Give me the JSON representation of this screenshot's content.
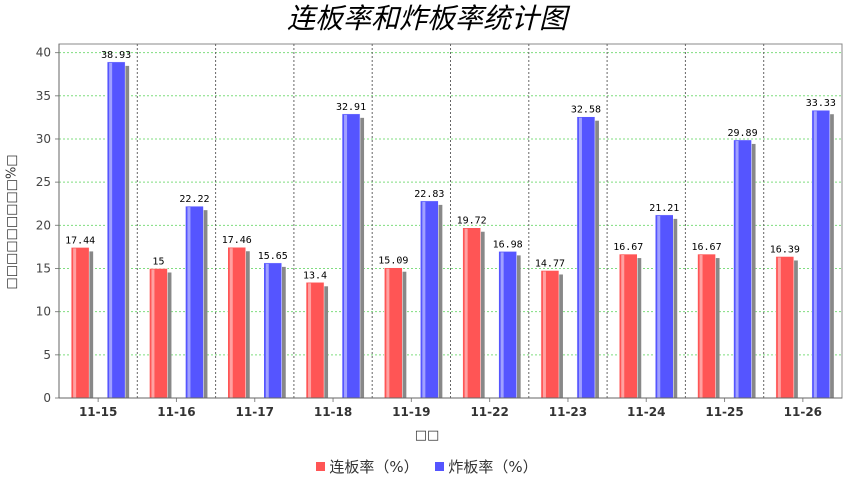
{
  "chart_data": {
    "type": "bar",
    "title": "连板率和炸板率统计图",
    "xlabel": "□□",
    "ylabel": "□□□□□□□□□%□",
    "categories": [
      "11-15",
      "11-16",
      "11-17",
      "11-18",
      "11-19",
      "11-22",
      "11-23",
      "11-24",
      "11-25",
      "11-26"
    ],
    "series": [
      {
        "name": "连板率（%）",
        "color": "#ff5555",
        "values": [
          17.44,
          15,
          17.46,
          13.4,
          15.09,
          19.72,
          14.77,
          16.67,
          16.67,
          16.39
        ],
        "labels": [
          "17.44",
          "15",
          "17.46",
          "13.4",
          "15.09",
          "19.72",
          "14.77",
          "16.67",
          "16.67",
          "16.39"
        ]
      },
      {
        "name": "炸板率（%）",
        "color": "#5555ff",
        "values": [
          38.93,
          22.22,
          15.65,
          32.91,
          22.83,
          16.98,
          32.58,
          21.21,
          29.89,
          33.33
        ],
        "labels": [
          "38.93",
          "22.22",
          "15.65",
          "32.91",
          "22.83",
          "16.98",
          "32.58",
          "21.21",
          "29.89",
          "33.33"
        ]
      }
    ],
    "yticks": [
      "0",
      "5",
      "10",
      "15",
      "20",
      "25",
      "30",
      "35",
      "40"
    ],
    "ylim": [
      0,
      41
    ],
    "grid": true,
    "legend_position": "bottom"
  }
}
